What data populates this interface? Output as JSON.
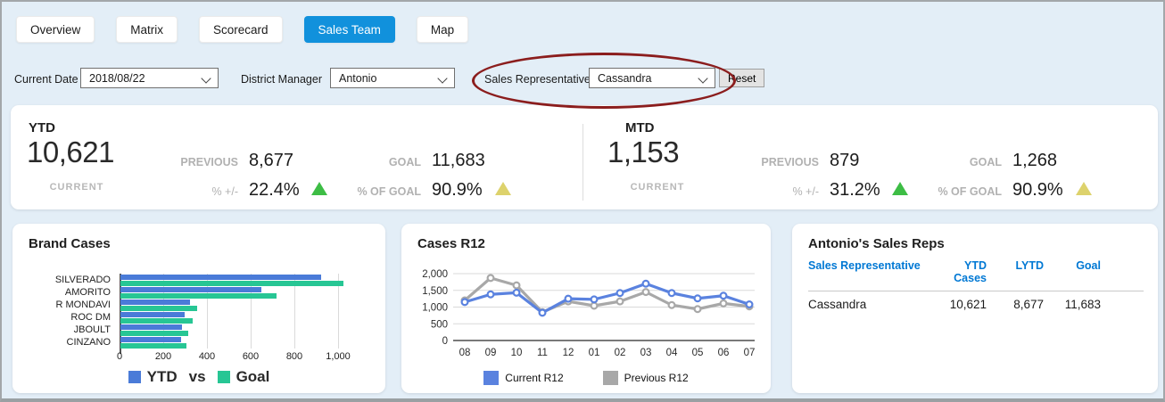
{
  "tabs": [
    {
      "label": "Overview",
      "active": false
    },
    {
      "label": "Matrix",
      "active": false
    },
    {
      "label": "Scorecard",
      "active": false
    },
    {
      "label": "Sales Team",
      "active": true
    },
    {
      "label": "Map",
      "active": false
    }
  ],
  "filters": {
    "current_date": {
      "label": "Current Date",
      "value": "2018/08/22"
    },
    "district_manager": {
      "label": "District Manager",
      "value": "Antonio"
    },
    "sales_representative": {
      "label": "Sales Representative",
      "value": "Cassandra"
    },
    "reset_label": "Reset"
  },
  "annotation": {
    "type": "ellipse",
    "color": "#8b1d1d",
    "around": "Sales Representative filter"
  },
  "kpi_cards": [
    {
      "title": "YTD",
      "current_value": "10,621",
      "current_label": "CURRENT",
      "previous_label": "PREVIOUS",
      "previous_value": "8,677",
      "change_label": "% +/-",
      "change_value": "22.4%",
      "change_indicator": "up-green",
      "goal_label": "GOAL",
      "goal_value": "11,683",
      "pct_of_goal_label": "% OF GOAL",
      "pct_of_goal_value": "90.9%",
      "pct_of_goal_indicator": "up-yellow"
    },
    {
      "title": "MTD",
      "current_value": "1,153",
      "current_label": "CURRENT",
      "previous_label": "PREVIOUS",
      "previous_value": "879",
      "change_label": "% +/-",
      "change_value": "31.2%",
      "change_indicator": "up-green",
      "goal_label": "GOAL",
      "goal_value": "1,268",
      "pct_of_goal_label": "% OF GOAL",
      "pct_of_goal_value": "90.9%",
      "pct_of_goal_indicator": "up-yellow"
    }
  ],
  "chart_data": [
    {
      "type": "bar",
      "orientation": "horizontal",
      "title": "Brand Cases",
      "categories": [
        "SILVERADO",
        "AMORITO",
        "R MONDAVI",
        "ROC DM",
        "JBOULT",
        "CINZANO"
      ],
      "series": [
        {
          "name": "YTD",
          "color": "#4a7bd8",
          "values": [
            920,
            645,
            320,
            295,
            282,
            278
          ]
        },
        {
          "name": "Goal",
          "color": "#27c694",
          "values": [
            1020,
            715,
            350,
            330,
            310,
            303
          ]
        }
      ],
      "xlim": [
        0,
        1200
      ],
      "xticks": [
        0,
        200,
        400,
        600,
        800,
        1000
      ],
      "xtick_labels": [
        "0",
        "200",
        "400",
        "600",
        "800",
        "1,000"
      ],
      "legend_separator": "vs",
      "legend_position": "bottom",
      "grid": true
    },
    {
      "type": "line",
      "title": "Cases R12",
      "x": [
        "08",
        "09",
        "10",
        "11",
        "12",
        "01",
        "02",
        "03",
        "04",
        "05",
        "06",
        "07"
      ],
      "series": [
        {
          "name": "Current R12",
          "color": "#5a82df",
          "values": [
            1150,
            1380,
            1430,
            830,
            1250,
            1230,
            1420,
            1700,
            1420,
            1260,
            1340,
            1080
          ]
        },
        {
          "name": "Previous R12",
          "color": "#a8a8a8",
          "values": [
            1200,
            1870,
            1650,
            850,
            1170,
            1040,
            1170,
            1450,
            1060,
            940,
            1110,
            1020
          ]
        }
      ],
      "ylim": [
        0,
        2000
      ],
      "yticks": [
        0,
        500,
        1000,
        1500,
        2000
      ],
      "ytick_labels": [
        "0",
        "500",
        "1,000",
        "1,500",
        "2,000"
      ],
      "legend_position": "bottom",
      "grid": true
    }
  ],
  "table": {
    "title": "Antonio's Sales Reps",
    "headers": [
      "Sales Representative",
      "YTD Cases",
      "LYTD",
      "Goal"
    ],
    "rows": [
      [
        "Cassandra",
        "10,621",
        "8,677",
        "11,683"
      ]
    ],
    "header_color": "#0078d4"
  },
  "colors": {
    "page_bg": "#e3eef7",
    "active_tab": "#1191dc",
    "indicator_green": "#3dbd45",
    "indicator_yellow": "#ddd26c",
    "annotation_red": "#8b1d1d"
  }
}
